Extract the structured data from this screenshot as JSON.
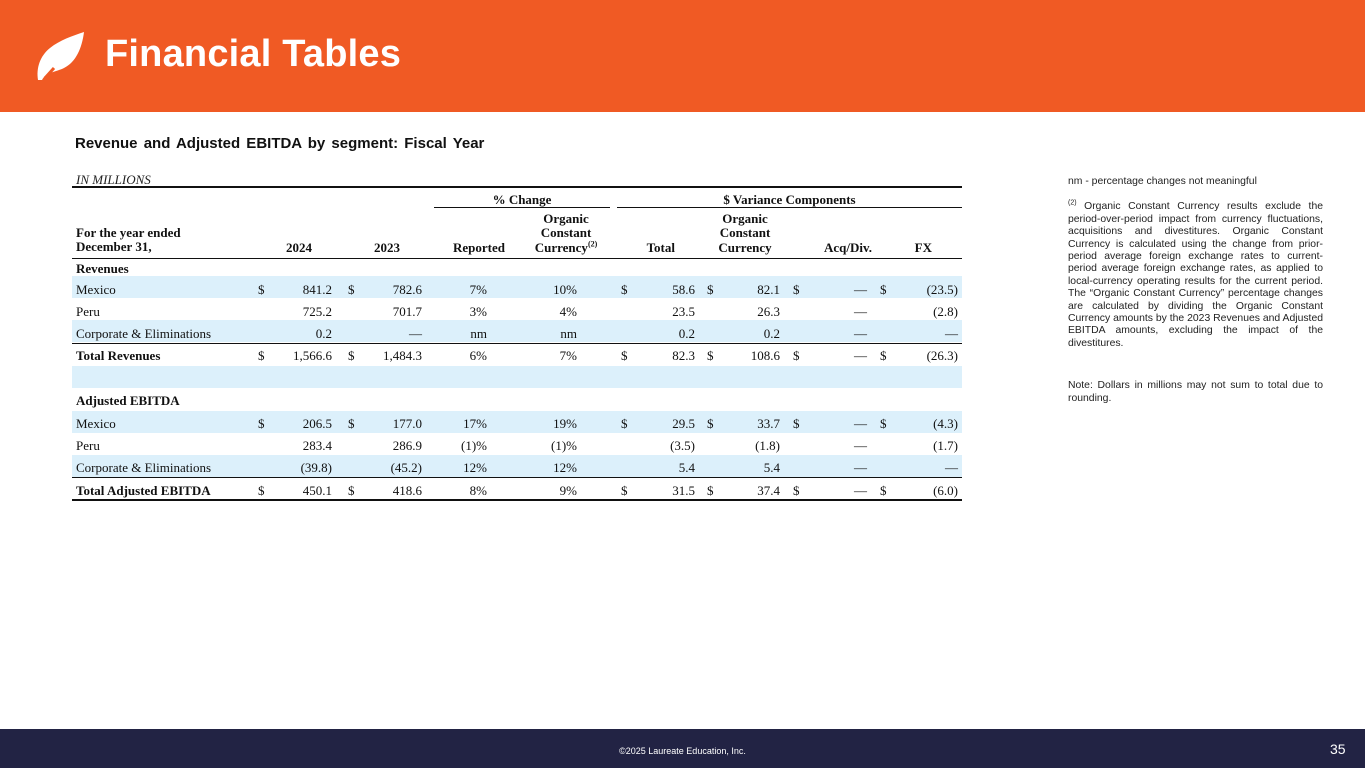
{
  "header": {
    "title": "Financial Tables"
  },
  "subtitle": "Revenue and Adjusted EBITDA by segment: Fiscal Year",
  "units": "IN MILLIONS",
  "table": {
    "group_headers": {
      "pct_change": "% Change",
      "variance": "$ Variance Components"
    },
    "columns": {
      "label_line1": "For the year ended",
      "label_line2": "December 31,",
      "y2024": "2024",
      "y2023": "2023",
      "reported": "Reported",
      "occ_line1": "Organic",
      "occ_line2": "Constant",
      "occ_line3": "Currency",
      "occ_sup": "(2)",
      "total": "Total",
      "var_occ_line1": "Organic",
      "var_occ_line2": "Constant",
      "var_occ_line3": "Currency",
      "acq": "Acq/Div.",
      "fx": "FX"
    },
    "revenues_label": "Revenues",
    "ebitda_label": "Adjusted EBITDA",
    "rows": [
      {
        "label": "Mexico",
        "d1": "$",
        "v2024": "841.2",
        "d2": "$",
        "v2023": "782.6",
        "reported": "7%",
        "occ": "10%",
        "d3": "$",
        "total": "58.6",
        "d4": "$",
        "var_occ": "82.1",
        "d5": "$",
        "acq": "—",
        "d6": "$",
        "fx": "(23.5)"
      },
      {
        "label": "Peru",
        "d1": "",
        "v2024": "725.2",
        "d2": "",
        "v2023": "701.7",
        "reported": "3%",
        "occ": "4%",
        "d3": "",
        "total": "23.5",
        "d4": "",
        "var_occ": "26.3",
        "d5": "",
        "acq": "—",
        "d6": "",
        "fx": "(2.8)"
      },
      {
        "label": "Corporate & Eliminations",
        "d1": "",
        "v2024": "0.2",
        "d2": "",
        "v2023": "—",
        "reported": "nm",
        "occ": "nm",
        "d3": "",
        "total": "0.2",
        "d4": "",
        "var_occ": "0.2",
        "d5": "",
        "acq": "—",
        "d6": "",
        "fx": "—"
      },
      {
        "label": "Total Revenues",
        "d1": "$",
        "v2024": "1,566.6",
        "d2": "$",
        "v2023": "1,484.3",
        "reported": "6%",
        "occ": "7%",
        "d3": "$",
        "total": "82.3",
        "d4": "$",
        "var_occ": "108.6",
        "d5": "$",
        "acq": "—",
        "d6": "$",
        "fx": "(26.3)"
      },
      {
        "label": "Mexico",
        "d1": "$",
        "v2024": "206.5",
        "d2": "$",
        "v2023": "177.0",
        "reported": "17%",
        "occ": "19%",
        "d3": "$",
        "total": "29.5",
        "d4": "$",
        "var_occ": "33.7",
        "d5": "$",
        "acq": "—",
        "d6": "$",
        "fx": "(4.3)"
      },
      {
        "label": "Peru",
        "d1": "",
        "v2024": "283.4",
        "d2": "",
        "v2023": "286.9",
        "reported": "(1)%",
        "occ": "(1)%",
        "d3": "",
        "total": "(3.5)",
        "d4": "",
        "var_occ": "(1.8)",
        "d5": "",
        "acq": "—",
        "d6": "",
        "fx": "(1.7)"
      },
      {
        "label": "Corporate & Eliminations",
        "d1": "",
        "v2024": "(39.8)",
        "d2": "",
        "v2023": "(45.2)",
        "reported": "12%",
        "occ": "12%",
        "d3": "",
        "total": "5.4",
        "d4": "",
        "var_occ": "5.4",
        "d5": "",
        "acq": "—",
        "d6": "",
        "fx": "—"
      },
      {
        "label": "Total Adjusted EBITDA",
        "d1": "$",
        "v2024": "450.1",
        "d2": "$",
        "v2023": "418.6",
        "reported": "8%",
        "occ": "9%",
        "d3": "$",
        "total": "31.5",
        "d4": "$",
        "var_occ": "37.4",
        "d5": "$",
        "acq": "—",
        "d6": "$",
        "fx": "(6.0)"
      }
    ]
  },
  "notes": {
    "nm_note": "nm - percentage changes not meaningful",
    "footnote_marker": "(2)",
    "footnote_text": "Organic Constant Currency results exclude the period-over-period impact from currency fluctuations, acquisitions and divestitures. Organic Constant Currency is calculated using the change from prior-period average foreign exchange rates to current-period average foreign exchange rates, as applied to local-currency operating results for the current period. The “Organic Constant Currency” percentage changes are calculated by dividing the Organic Constant Currency amounts by the 2023 Revenues and Adjusted EBITDA amounts, excluding the impact of the divestitures.",
    "rounding_note": "Note: Dollars in millions may not sum to total due to rounding."
  },
  "footer": {
    "copyright": "©2025 Laureate Education, Inc.",
    "page_number": "35"
  },
  "colors": {
    "brand_orange": "#f05a24",
    "footer_navy": "#222344",
    "row_band": "#dcf0fb"
  }
}
